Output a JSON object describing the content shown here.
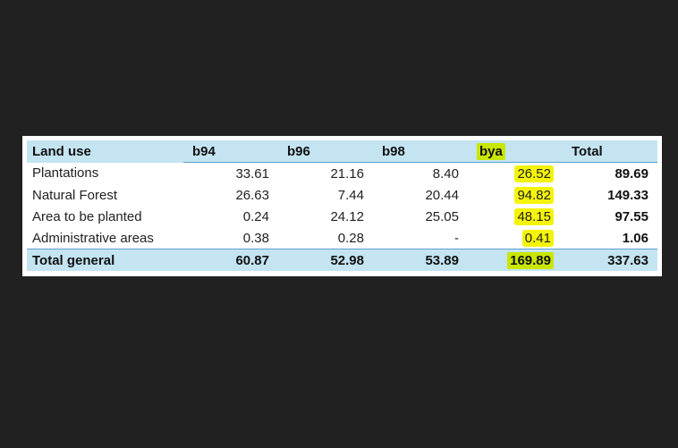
{
  "highlight_color": "#f4f40a",
  "header_color": "#c4e4f2",
  "table": {
    "columns": [
      "Land use",
      "b94",
      "b96",
      "b98",
      "bya",
      "Total"
    ],
    "rows": [
      {
        "label": "Plantations",
        "b94": "33.61",
        "b96": "21.16",
        "b98": "8.40",
        "bya": "26.52",
        "total": "89.69"
      },
      {
        "label": "Natural Forest",
        "b94": "26.63",
        "b96": "7.44",
        "b98": "20.44",
        "bya": "94.82",
        "total": "149.33"
      },
      {
        "label": "Area to be planted",
        "b94": "0.24",
        "b96": "24.12",
        "b98": "25.05",
        "bya": "48.15",
        "total": "97.55"
      },
      {
        "label": "Administrative areas",
        "b94": "0.38",
        "b96": "0.28",
        "b98": "-",
        "bya": "0.41",
        "total": "1.06"
      }
    ],
    "total_row": {
      "label": "Total general",
      "b94": "60.87",
      "b96": "52.98",
      "b98": "53.89",
      "bya": "169.89",
      "total": "337.63"
    }
  }
}
